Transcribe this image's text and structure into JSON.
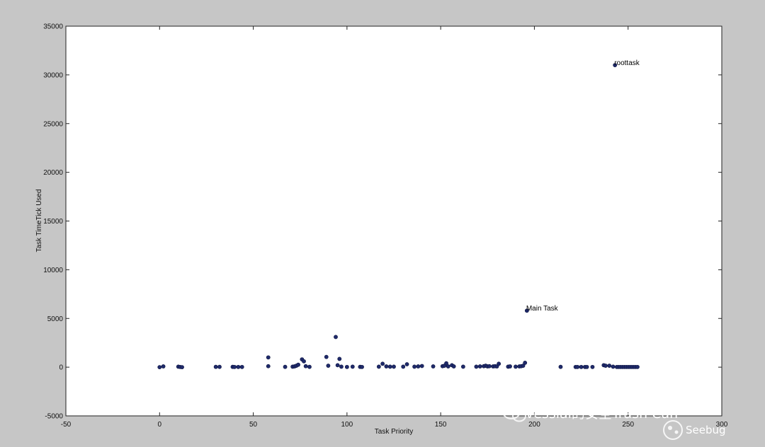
{
  "chart_data": {
    "type": "scatter",
    "title": "",
    "xlabel": "Task Priority",
    "ylabel": "Task TimeTick Used",
    "xlim": [
      -50,
      300
    ],
    "ylim": [
      -5000,
      35000
    ],
    "xticks": [
      -50,
      0,
      50,
      100,
      150,
      200,
      250,
      300
    ],
    "yticks": [
      -5000,
      0,
      5000,
      10000,
      15000,
      20000,
      25000,
      30000,
      35000
    ],
    "grid": false,
    "marker_color": "#1f2a6b",
    "points": [
      {
        "x": 0,
        "y": 0
      },
      {
        "x": 2,
        "y": 80
      },
      {
        "x": 10,
        "y": 50
      },
      {
        "x": 11,
        "y": 20
      },
      {
        "x": 12,
        "y": 0
      },
      {
        "x": 30,
        "y": 30
      },
      {
        "x": 32,
        "y": 30
      },
      {
        "x": 39,
        "y": 30
      },
      {
        "x": 40,
        "y": 20
      },
      {
        "x": 42,
        "y": 20
      },
      {
        "x": 44,
        "y": 20
      },
      {
        "x": 58,
        "y": 100
      },
      {
        "x": 58,
        "y": 1000
      },
      {
        "x": 67,
        "y": 30
      },
      {
        "x": 71,
        "y": 50
      },
      {
        "x": 72,
        "y": 80
      },
      {
        "x": 73,
        "y": 150
      },
      {
        "x": 74,
        "y": 250
      },
      {
        "x": 76,
        "y": 800
      },
      {
        "x": 77,
        "y": 600
      },
      {
        "x": 78,
        "y": 100
      },
      {
        "x": 80,
        "y": 30
      },
      {
        "x": 89,
        "y": 1050
      },
      {
        "x": 90,
        "y": 150
      },
      {
        "x": 94,
        "y": 3100
      },
      {
        "x": 95,
        "y": 200
      },
      {
        "x": 96,
        "y": 850
      },
      {
        "x": 97,
        "y": 50
      },
      {
        "x": 100,
        "y": 20
      },
      {
        "x": 103,
        "y": 50
      },
      {
        "x": 107,
        "y": 30
      },
      {
        "x": 108,
        "y": 20
      },
      {
        "x": 117,
        "y": 50
      },
      {
        "x": 119,
        "y": 350
      },
      {
        "x": 121,
        "y": 80
      },
      {
        "x": 123,
        "y": 50
      },
      {
        "x": 125,
        "y": 50
      },
      {
        "x": 130,
        "y": 50
      },
      {
        "x": 132,
        "y": 300
      },
      {
        "x": 136,
        "y": 50
      },
      {
        "x": 138,
        "y": 80
      },
      {
        "x": 140,
        "y": 120
      },
      {
        "x": 146,
        "y": 80
      },
      {
        "x": 151,
        "y": 100
      },
      {
        "x": 152,
        "y": 150
      },
      {
        "x": 153,
        "y": 400
      },
      {
        "x": 154,
        "y": 80
      },
      {
        "x": 156,
        "y": 200
      },
      {
        "x": 157,
        "y": 80
      },
      {
        "x": 162,
        "y": 50
      },
      {
        "x": 169,
        "y": 50
      },
      {
        "x": 171,
        "y": 80
      },
      {
        "x": 173,
        "y": 100
      },
      {
        "x": 174,
        "y": 150
      },
      {
        "x": 175,
        "y": 80
      },
      {
        "x": 176,
        "y": 100
      },
      {
        "x": 178,
        "y": 80
      },
      {
        "x": 179,
        "y": 100
      },
      {
        "x": 180,
        "y": 80
      },
      {
        "x": 181,
        "y": 350
      },
      {
        "x": 186,
        "y": 50
      },
      {
        "x": 187,
        "y": 80
      },
      {
        "x": 190,
        "y": 50
      },
      {
        "x": 192,
        "y": 80
      },
      {
        "x": 193,
        "y": 100
      },
      {
        "x": 194,
        "y": 150
      },
      {
        "x": 195,
        "y": 450
      },
      {
        "x": 196,
        "y": 5800
      },
      {
        "x": 214,
        "y": 30
      },
      {
        "x": 222,
        "y": 20
      },
      {
        "x": 223,
        "y": 20
      },
      {
        "x": 225,
        "y": 20
      },
      {
        "x": 227,
        "y": 20
      },
      {
        "x": 228,
        "y": 20
      },
      {
        "x": 231,
        "y": 20
      },
      {
        "x": 237,
        "y": 200
      },
      {
        "x": 238,
        "y": 150
      },
      {
        "x": 240,
        "y": 150
      },
      {
        "x": 242,
        "y": 50
      },
      {
        "x": 243,
        "y": 31000
      },
      {
        "x": 244,
        "y": 20
      },
      {
        "x": 245,
        "y": 20
      },
      {
        "x": 246,
        "y": 20
      },
      {
        "x": 247,
        "y": 20
      },
      {
        "x": 248,
        "y": 20
      },
      {
        "x": 249,
        "y": 20
      },
      {
        "x": 250,
        "y": 20
      },
      {
        "x": 251,
        "y": 20
      },
      {
        "x": 252,
        "y": 20
      },
      {
        "x": 253,
        "y": 20
      },
      {
        "x": 254,
        "y": 20
      },
      {
        "x": 255,
        "y": 20
      }
    ],
    "annotations": [
      {
        "text": "roottask",
        "x": 243,
        "y": 31000
      },
      {
        "text": "Main Task",
        "x": 196,
        "y": 5800
      }
    ]
  },
  "watermark": {
    "text": "vessial的安全Trash Can",
    "brand": "Seebug"
  }
}
